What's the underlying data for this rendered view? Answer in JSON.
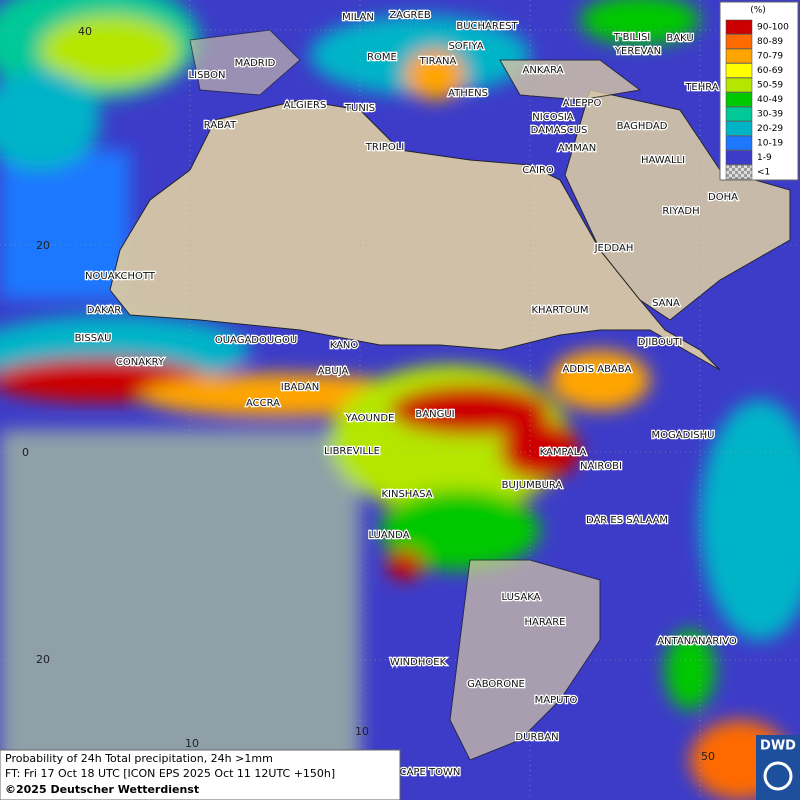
{
  "map": {
    "cities": [
      "MILAN",
      "ZAGREB",
      "BUCHAREST",
      "T'BILISI",
      "BAKU",
      "SOFIYA",
      "ROME",
      "TIRANA",
      "YEREVAN",
      "MADRID",
      "LISBON",
      "ANKARA",
      "ATHENS",
      "TEHRA",
      "ALGIERS",
      "TUNIS",
      "ALEPPO",
      "NICOSIA",
      "RABAT",
      "BAGHDAD",
      "DAMASCUS",
      "AMMAN",
      "TRIPOLI",
      "HAWALLI",
      "CAIRO",
      "DOHA",
      "RIYADH",
      "JEDDAH",
      "NOUAKCHOTT",
      "DAKAR",
      "KHARTOUM",
      "SANA",
      "BISSAU",
      "OUAGADOUGOU",
      "DJIBOUTI",
      "KANO",
      "CONAKRY",
      "ABUJA",
      "ADDIS ABABA",
      "IBADAN",
      "ACCRA",
      "YAOUNDE",
      "BANGUI",
      "MOGADISHU",
      "LIBREVILLE",
      "KAMPALA",
      "NAIROBI",
      "BUJUMBURA",
      "KINSHASA",
      "DAR ES SALAAM",
      "LUANDA",
      "LUSAKA",
      "HARARE",
      "ANTANANARIVO",
      "WINDHOEK",
      "GABORONE",
      "MAPUTO",
      "DURBAN",
      "CAPE TOWN"
    ],
    "grid_labels": [
      "40",
      "20",
      "0",
      "20",
      "10",
      "10",
      "50"
    ]
  },
  "legend": {
    "unit": "(%)",
    "entries": [
      {
        "label": "90-100",
        "color": "#cc0000"
      },
      {
        "label": "80-89",
        "color": "#ff6a00"
      },
      {
        "label": "70-79",
        "color": "#ffa500"
      },
      {
        "label": "60-69",
        "color": "#ffff00"
      },
      {
        "label": "50-59",
        "color": "#b4e600"
      },
      {
        "label": "40-49",
        "color": "#00c800"
      },
      {
        "label": "30-39",
        "color": "#00c896"
      },
      {
        "label": "20-29",
        "color": "#00b4c8"
      },
      {
        "label": "10-19",
        "color": "#1e78ff"
      },
      {
        "label": "1-9",
        "color": "#3c3cc8"
      },
      {
        "label": "<1",
        "color": "#b8b8b8"
      }
    ]
  },
  "footer": {
    "lines": [
      "Probability of 24h Total precipitation, 24h >1mm",
      "FT: Fri 17 Oct 18 UTC [ICON EPS 2025 Oct 11 12UTC +150h]"
    ],
    "copyright": "©2025 Deutscher Wetterdienst"
  },
  "logo": "DWD"
}
